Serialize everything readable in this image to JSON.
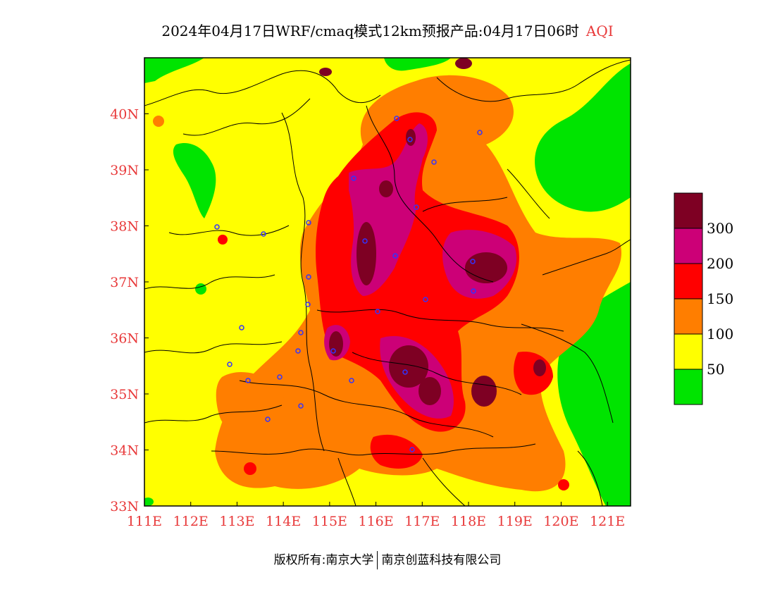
{
  "title": {
    "main": "2024年04月17日WRF/cmaq模式12km预报产品:04月17日06时",
    "pollutant": "AQI"
  },
  "map": {
    "lon_range": [
      111,
      121.5
    ],
    "lat_range": [
      33,
      41
    ],
    "x_ticks": [
      {
        "value": 111,
        "label": "111E"
      },
      {
        "value": 112,
        "label": "112E"
      },
      {
        "value": 113,
        "label": "113E"
      },
      {
        "value": 114,
        "label": "114E"
      },
      {
        "value": 115,
        "label": "115E"
      },
      {
        "value": 116,
        "label": "116E"
      },
      {
        "value": 117,
        "label": "117E"
      },
      {
        "value": 118,
        "label": "118E"
      },
      {
        "value": 119,
        "label": "119E"
      },
      {
        "value": 120,
        "label": "120E"
      },
      {
        "value": 121,
        "label": "121E"
      }
    ],
    "y_ticks": [
      {
        "value": 33,
        "label": "33N"
      },
      {
        "value": 34,
        "label": "34N"
      },
      {
        "value": 35,
        "label": "35N"
      },
      {
        "value": 36,
        "label": "36N"
      },
      {
        "value": 37,
        "label": "37N"
      },
      {
        "value": 38,
        "label": "38N"
      },
      {
        "value": 39,
        "label": "39N"
      },
      {
        "value": 40,
        "label": "40N"
      }
    ],
    "colors": {
      "good": "#00e400",
      "moderate": "#ffff00",
      "usg": "#ff7e00",
      "unhealthy": "#ff0000",
      "very_unhealthy": "#cc0077",
      "hazardous": "#7e0023",
      "station": "#3333ff",
      "border": "#000000"
    }
  },
  "legend": {
    "bins": [
      {
        "color": "#7e0023",
        "label": "300"
      },
      {
        "color": "#cc0077",
        "label": "200"
      },
      {
        "color": "#ff0000",
        "label": "150"
      },
      {
        "color": "#ff7e00",
        "label": "100"
      },
      {
        "color": "#ffff00",
        "label": "50"
      },
      {
        "color": "#00e400",
        "label": ""
      }
    ]
  },
  "footer": {
    "left": "版权所有:南京大学",
    "right": "南京创蓝科技有限公司"
  }
}
